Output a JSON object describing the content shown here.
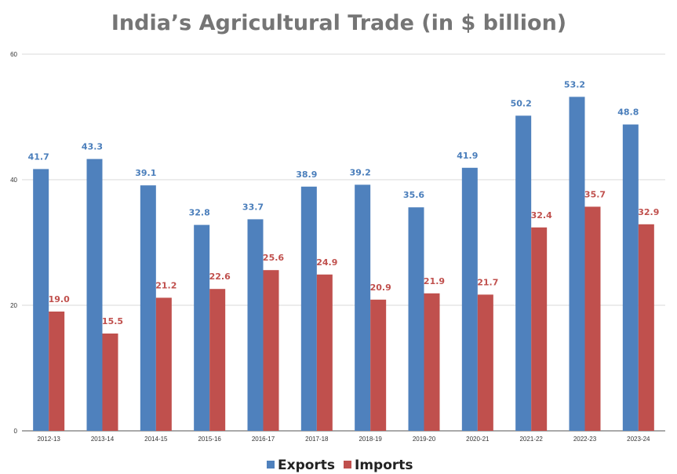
{
  "chart_data": {
    "type": "bar",
    "title": "India’s Agricultural Trade (in $ billion)",
    "xlabel": "",
    "ylabel": "",
    "ylim": [
      0,
      60
    ],
    "yticks": [
      "0",
      "20",
      "40",
      "60"
    ],
    "grid": true,
    "legend_position": "bottom",
    "categories": [
      "2012-13",
      "2013-14",
      "2014-15",
      "2015-16",
      "2016-17",
      "2017-18",
      "2018-19",
      "2019-20",
      "2020-21",
      "2021-22",
      "2022-23",
      "2023-24"
    ],
    "series": [
      {
        "name": "Exports",
        "color": "#4f81bd",
        "label_color": "#4a7ebb",
        "values": [
          41.7,
          43.3,
          39.1,
          32.8,
          33.7,
          38.9,
          39.2,
          35.6,
          41.9,
          50.2,
          53.2,
          48.8
        ],
        "labels": [
          "41.7",
          "43.3",
          "39.1",
          "32.8",
          "33.7",
          "38.9",
          "39.2",
          "35.6",
          "41.9",
          "50.2",
          "53.2",
          "48.8"
        ]
      },
      {
        "name": "Imports",
        "color": "#c0504d",
        "label_color": "#c0504d",
        "values": [
          19.0,
          15.5,
          21.2,
          22.6,
          25.6,
          24.9,
          20.9,
          21.9,
          21.7,
          32.4,
          35.7,
          32.9
        ],
        "labels": [
          "19.0",
          "15.5",
          "21.2",
          "22.6",
          "25.6",
          "24.9",
          "20.9",
          "21.9",
          "21.7",
          "32.4",
          "35.7",
          "32.9"
        ]
      }
    ]
  }
}
